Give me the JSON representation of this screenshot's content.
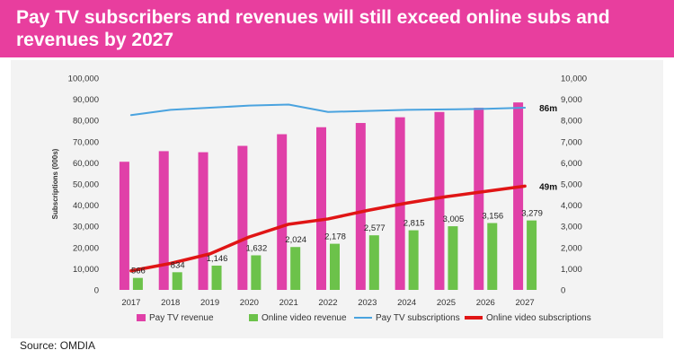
{
  "header": {
    "title": "Pay TV subscribers and revenues will still exceed online subs and revenues by 2027"
  },
  "source": "Source: OMDIA",
  "colors": {
    "banner": "#e83e9e",
    "pay_tv_revenue": "#e040a8",
    "online_video_revenue": "#6cc24a",
    "pay_tv_subscriptions": "#4aa3df",
    "online_video_subscriptions": "#e01515"
  },
  "chart_data": {
    "type": "bar",
    "categories": [
      "2017",
      "2018",
      "2019",
      "2020",
      "2021",
      "2022",
      "2023",
      "2024",
      "2025",
      "2026",
      "2027"
    ],
    "y_left": {
      "label": "Subscriptions (000s)",
      "lim": [
        0,
        100000
      ],
      "ticks": [
        "0",
        "10,000",
        "20,000",
        "30,000",
        "40,000",
        "50,000",
        "60,000",
        "70,000",
        "80,000",
        "90,000",
        "100,000"
      ]
    },
    "y_right": {
      "label": "",
      "lim": [
        0,
        10000
      ],
      "ticks": [
        "0",
        "1,000",
        "2,000",
        "3,000",
        "4,000",
        "5,000",
        "6,000",
        "7,000",
        "8,000",
        "9,000",
        "10,000"
      ]
    },
    "series": [
      {
        "name": "Pay TV revenue",
        "type": "bar",
        "axis": "right",
        "values": [
          6050,
          6550,
          6500,
          6800,
          7350,
          7680,
          7880,
          8150,
          8400,
          8600,
          8850
        ]
      },
      {
        "name": "Online video revenue",
        "type": "bar",
        "axis": "right",
        "values": [
          566,
          834,
          1146,
          1632,
          2024,
          2178,
          2577,
          2815,
          3005,
          3156,
          3279
        ],
        "labels": [
          "566",
          "834",
          "1,146",
          "1,632",
          "2,024",
          "2,178",
          "2,577",
          "2,815",
          "3,005",
          "3,156",
          "3,279"
        ]
      },
      {
        "name": "Pay TV subscriptions",
        "type": "line",
        "axis": "left",
        "values": [
          82500,
          85000,
          86000,
          87000,
          87500,
          84000,
          84500,
          85000,
          85200,
          85500,
          86000
        ],
        "end_label": "86m"
      },
      {
        "name": "Online video subscriptions",
        "type": "line",
        "axis": "left",
        "values": [
          9000,
          12500,
          17000,
          25000,
          31000,
          33500,
          37500,
          41000,
          44000,
          46500,
          49000
        ],
        "end_label": "49m"
      }
    ],
    "legend_position": "bottom",
    "grid": false
  }
}
